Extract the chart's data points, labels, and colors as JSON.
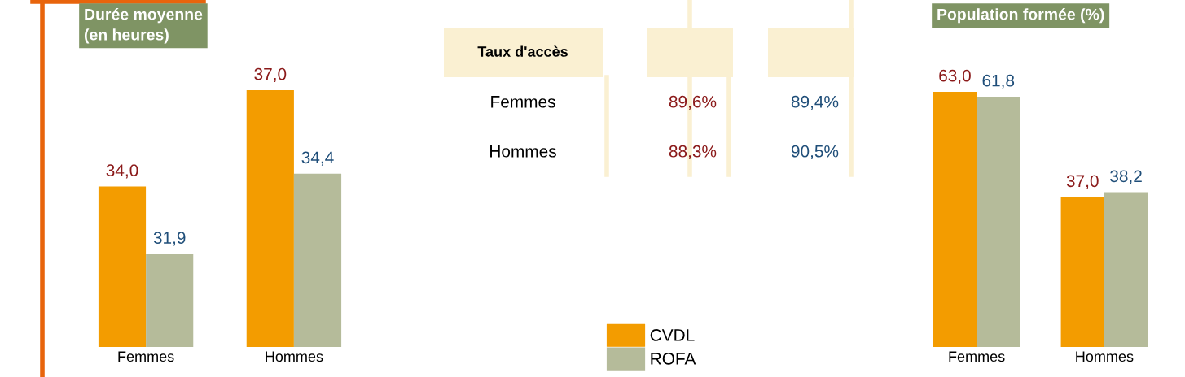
{
  "chart_data": [
    {
      "type": "bar",
      "title": "Durée moyenne\n(en heures)",
      "categories": [
        "Femmes",
        "Hommes"
      ],
      "ylim": [
        29,
        37
      ],
      "tick_labels": "x",
      "series": [
        {
          "color": "#f39c00",
          "values": [
            34.0,
            37.0
          ],
          "value_labels": [
            "34,0",
            "37,0"
          ]
        },
        {
          "color": "#b5bb9a",
          "values": [
            31.9,
            34.4
          ],
          "value_labels": [
            "31,9",
            "34,4"
          ]
        }
      ]
    },
    {
      "type": "other",
      "title": "Taux d'accès",
      "categories": [
        "Femmes",
        "Hommes"
      ],
      "legend": "bottom",
      "series": [
        {
          "name": "CVDL",
          "color": "#f39c00",
          "values": [
            89.6,
            88.3
          ],
          "value_labels": [
            "89,6%",
            "88,3%"
          ]
        },
        {
          "name": "ROFA",
          "color": "#b5bb9a",
          "values": [
            89.4,
            90.5
          ],
          "value_labels": [
            "89,4%",
            "90,5%"
          ]
        }
      ]
    },
    {
      "type": "bar",
      "title": "Population formée (%)",
      "categories": [
        "Femmes",
        "Hommes"
      ],
      "ylim": [
        0,
        63
      ],
      "tick_labels": "x",
      "series": [
        {
          "color": "#f39c00",
          "values": [
            63.0,
            37.0
          ],
          "value_labels": [
            "63,0",
            "37,0"
          ]
        },
        {
          "color": "#b5bb9a",
          "values": [
            61.8,
            38.2
          ],
          "value_labels": [
            "61,8",
            "38,2"
          ]
        }
      ]
    }
  ]
}
